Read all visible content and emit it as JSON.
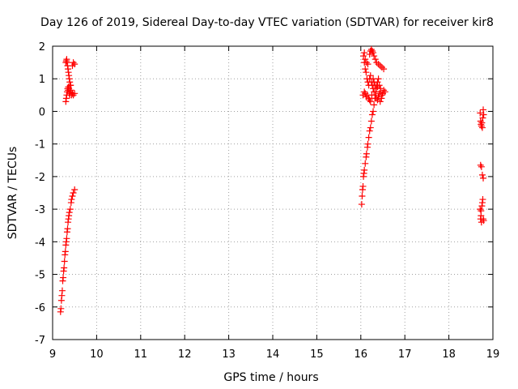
{
  "chart_data": {
    "type": "scatter",
    "title": "Day 126 of 2019, Sidereal Day-to-day VTEC variation (SDTVAR) for receiver kir8",
    "xlabel": "GPS time / hours",
    "ylabel": "SDTVAR / TECUs",
    "xlim": [
      9,
      19
    ],
    "ylim": [
      -7,
      2
    ],
    "xticks": [
      9,
      10,
      11,
      12,
      13,
      14,
      15,
      16,
      17,
      18,
      19
    ],
    "yticks": [
      -7,
      -6,
      -5,
      -4,
      -3,
      -2,
      -1,
      0,
      1,
      2
    ],
    "grid": true,
    "marker": "+",
    "color": "#ff0000",
    "series": [
      {
        "name": "SDTVAR",
        "points": [
          [
            9.18,
            -6.15
          ],
          [
            9.19,
            -6.05
          ],
          [
            9.2,
            -5.8
          ],
          [
            9.21,
            -5.65
          ],
          [
            9.22,
            -5.5
          ],
          [
            9.23,
            -5.2
          ],
          [
            9.24,
            -5.1
          ],
          [
            9.25,
            -4.9
          ],
          [
            9.26,
            -4.8
          ],
          [
            9.27,
            -4.6
          ],
          [
            9.28,
            -4.4
          ],
          [
            9.29,
            -4.3
          ],
          [
            9.3,
            -4.1
          ],
          [
            9.31,
            -4.0
          ],
          [
            9.32,
            -3.9
          ],
          [
            9.33,
            -3.7
          ],
          [
            9.34,
            -3.6
          ],
          [
            9.35,
            -3.4
          ],
          [
            9.36,
            -3.3
          ],
          [
            9.37,
            -3.2
          ],
          [
            9.38,
            -3.1
          ],
          [
            9.4,
            -3.0
          ],
          [
            9.42,
            -2.8
          ],
          [
            9.43,
            -2.7
          ],
          [
            9.45,
            -2.6
          ],
          [
            9.47,
            -2.5
          ],
          [
            9.5,
            -2.4
          ],
          [
            9.3,
            0.3
          ],
          [
            9.31,
            0.4
          ],
          [
            9.32,
            0.5
          ],
          [
            9.33,
            0.6
          ],
          [
            9.34,
            0.7
          ],
          [
            9.35,
            0.65
          ],
          [
            9.36,
            0.75
          ],
          [
            9.37,
            0.7
          ],
          [
            9.38,
            0.55
          ],
          [
            9.39,
            0.5
          ],
          [
            9.4,
            0.6
          ],
          [
            9.41,
            0.8
          ],
          [
            9.42,
            0.65
          ],
          [
            9.43,
            0.5
          ],
          [
            9.45,
            0.55
          ],
          [
            9.47,
            0.5
          ],
          [
            9.5,
            0.55
          ],
          [
            9.3,
            1.5
          ],
          [
            9.31,
            1.55
          ],
          [
            9.32,
            1.6
          ],
          [
            9.33,
            1.5
          ],
          [
            9.34,
            1.4
          ],
          [
            9.35,
            1.3
          ],
          [
            9.36,
            1.2
          ],
          [
            9.37,
            1.1
          ],
          [
            9.38,
            1.0
          ],
          [
            9.39,
            0.9
          ],
          [
            9.4,
            0.8
          ],
          [
            9.45,
            1.4
          ],
          [
            9.47,
            1.5
          ],
          [
            9.5,
            1.45
          ],
          [
            16.02,
            -2.85
          ],
          [
            16.03,
            -2.6
          ],
          [
            16.04,
            -2.4
          ],
          [
            16.05,
            -2.3
          ],
          [
            16.06,
            -2.0
          ],
          [
            16.07,
            -1.9
          ],
          [
            16.08,
            -1.8
          ],
          [
            16.1,
            -1.6
          ],
          [
            16.12,
            -1.4
          ],
          [
            16.13,
            -1.3
          ],
          [
            16.15,
            -1.1
          ],
          [
            16.16,
            -1.0
          ],
          [
            16.18,
            -0.8
          ],
          [
            16.2,
            -0.6
          ],
          [
            16.22,
            -0.5
          ],
          [
            16.24,
            -0.3
          ],
          [
            16.26,
            -0.1
          ],
          [
            16.28,
            0.0
          ],
          [
            16.3,
            0.2
          ],
          [
            16.32,
            0.4
          ],
          [
            16.34,
            0.6
          ],
          [
            16.36,
            0.8
          ],
          [
            16.38,
            0.9
          ],
          [
            16.4,
            1.0
          ],
          [
            16.05,
            0.5
          ],
          [
            16.08,
            0.6
          ],
          [
            16.1,
            0.55
          ],
          [
            16.12,
            0.45
          ],
          [
            16.15,
            0.5
          ],
          [
            16.18,
            0.4
          ],
          [
            16.2,
            0.35
          ],
          [
            16.22,
            0.3
          ],
          [
            16.25,
            0.5
          ],
          [
            16.28,
            0.7
          ],
          [
            16.3,
            0.6
          ],
          [
            16.33,
            0.5
          ],
          [
            16.35,
            0.4
          ],
          [
            16.38,
            0.35
          ],
          [
            16.4,
            0.45
          ],
          [
            16.42,
            0.55
          ],
          [
            16.45,
            0.6
          ],
          [
            16.48,
            0.5
          ],
          [
            16.5,
            0.55
          ],
          [
            16.52,
            0.65
          ],
          [
            16.55,
            0.6
          ],
          [
            16.47,
            0.4
          ],
          [
            16.44,
            0.3
          ],
          [
            16.06,
            1.7
          ],
          [
            16.08,
            1.5
          ],
          [
            16.1,
            1.3
          ],
          [
            16.12,
            1.2
          ],
          [
            16.14,
            1.0
          ],
          [
            16.16,
            0.9
          ],
          [
            16.18,
            0.8
          ],
          [
            16.2,
            1.0
          ],
          [
            16.22,
            1.1
          ],
          [
            16.24,
            0.9
          ],
          [
            16.26,
            0.8
          ],
          [
            16.28,
            1.0
          ],
          [
            16.3,
            0.9
          ],
          [
            16.32,
            0.8
          ],
          [
            16.35,
            0.7
          ],
          [
            16.38,
            0.75
          ],
          [
            16.42,
            0.8
          ],
          [
            16.45,
            0.7
          ],
          [
            16.2,
            1.75
          ],
          [
            16.22,
            1.85
          ],
          [
            16.24,
            1.9
          ],
          [
            16.26,
            1.85
          ],
          [
            16.28,
            1.8
          ],
          [
            16.3,
            1.7
          ],
          [
            16.33,
            1.6
          ],
          [
            16.36,
            1.5
          ],
          [
            16.4,
            1.45
          ],
          [
            16.44,
            1.4
          ],
          [
            16.48,
            1.35
          ],
          [
            16.52,
            1.3
          ],
          [
            16.08,
            1.8
          ],
          [
            16.1,
            1.6
          ],
          [
            16.13,
            1.5
          ],
          [
            16.16,
            1.45
          ],
          [
            18.71,
            -0.05
          ],
          [
            18.72,
            -0.3
          ],
          [
            18.73,
            -0.4
          ],
          [
            18.74,
            -0.45
          ],
          [
            18.75,
            -0.35
          ],
          [
            18.76,
            -0.5
          ],
          [
            18.77,
            -0.2
          ],
          [
            18.78,
            0.05
          ],
          [
            18.79,
            -0.1
          ],
          [
            18.72,
            -1.65
          ],
          [
            18.74,
            -1.7
          ],
          [
            18.76,
            -1.95
          ],
          [
            18.78,
            -2.05
          ],
          [
            18.71,
            -3.0
          ],
          [
            18.72,
            -3.3
          ],
          [
            18.73,
            -3.2
          ],
          [
            18.74,
            -3.4
          ],
          [
            18.75,
            -2.9
          ],
          [
            18.76,
            -2.8
          ],
          [
            18.77,
            -2.7
          ],
          [
            18.78,
            -3.3
          ],
          [
            18.79,
            -3.35
          ],
          [
            18.73,
            -3.05
          ]
        ]
      }
    ]
  }
}
